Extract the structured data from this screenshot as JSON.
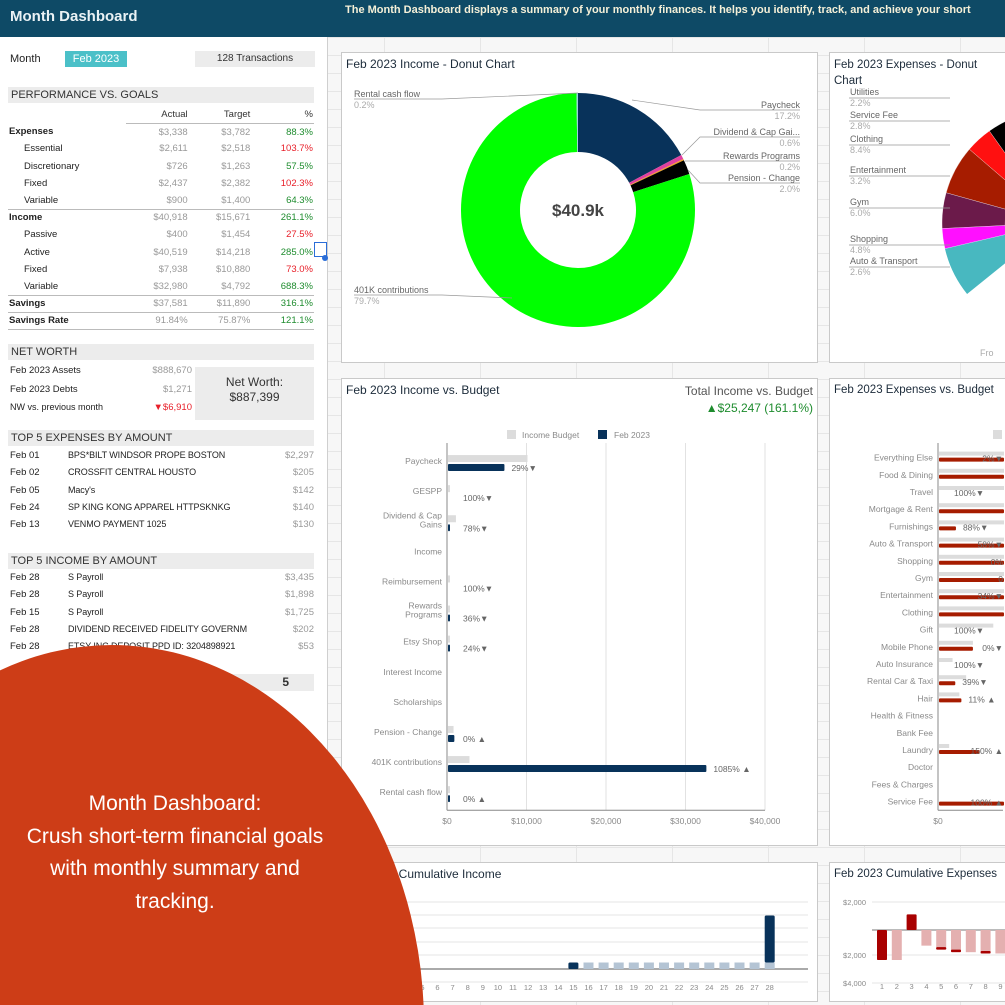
{
  "header": {
    "title": "Month Dashboard",
    "description": "The Month Dashboard displays a summary of your monthly finances. It helps you identify, track, and achieve your short"
  },
  "left": {
    "month_label": "Month",
    "month_value": "Feb 2023",
    "transactions": "128 Transactions",
    "performance": {
      "header": "PERFORMANCE VS. GOALS",
      "columns": [
        "Actual",
        "Target",
        "%"
      ],
      "rows": [
        {
          "label": "Expenses",
          "actual": "$3,338",
          "target": "$3,782",
          "pct": "88.3%",
          "status": "good",
          "level": "top"
        },
        {
          "label": "Essential",
          "actual": "$2,611",
          "target": "$2,518",
          "pct": "103.7%",
          "status": "bad",
          "level": "sub"
        },
        {
          "label": "Discretionary",
          "actual": "$726",
          "target": "$1,263",
          "pct": "57.5%",
          "status": "good",
          "level": "sub"
        },
        {
          "label": "Fixed",
          "actual": "$2,437",
          "target": "$2,382",
          "pct": "102.3%",
          "status": "bad",
          "level": "sub"
        },
        {
          "label": "Variable",
          "actual": "$900",
          "target": "$1,400",
          "pct": "64.3%",
          "status": "good",
          "level": "sub"
        },
        {
          "label": "Income",
          "actual": "$40,918",
          "target": "$15,671",
          "pct": "261.1%",
          "status": "good",
          "level": "top"
        },
        {
          "label": "Passive",
          "actual": "$400",
          "target": "$1,454",
          "pct": "27.5%",
          "status": "bad",
          "level": "sub"
        },
        {
          "label": "Active",
          "actual": "$40,519",
          "target": "$14,218",
          "pct": "285.0%",
          "status": "good",
          "level": "sub"
        },
        {
          "label": "Fixed",
          "actual": "$7,938",
          "target": "$10,880",
          "pct": "73.0%",
          "status": "bad",
          "level": "sub"
        },
        {
          "label": "Variable",
          "actual": "$32,980",
          "target": "$4,792",
          "pct": "688.3%",
          "status": "good",
          "level": "sub"
        },
        {
          "label": "Savings",
          "actual": "$37,581",
          "target": "$11,890",
          "pct": "316.1%",
          "status": "good",
          "level": "top"
        },
        {
          "label": "Savings Rate",
          "actual": "91.84%",
          "target": "75.87%",
          "pct": "121.1%",
          "status": "good",
          "level": "top"
        }
      ]
    },
    "net_worth": {
      "header": "NET WORTH",
      "assets_label": "Feb 2023 Assets",
      "assets": "$888,670",
      "debts_label": "Feb 2023 Debts",
      "debts": "$1,271",
      "change_label": "NW vs. previous month",
      "change": "▼$6,910",
      "total_label": "Net Worth:",
      "total": "$887,399"
    },
    "top_expenses": {
      "header": "TOP 5 EXPENSES BY AMOUNT",
      "rows": [
        {
          "date": "Feb 01",
          "name": "BPS*BILT WINDSOR PROPE   BOSTON",
          "amount": "$2,297"
        },
        {
          "date": "Feb 02",
          "name": "CROSSFIT CENTRAL HOUSTO",
          "amount": "$205"
        },
        {
          "date": "Feb 05",
          "name": "Macy's",
          "amount": "$142"
        },
        {
          "date": "Feb 24",
          "name": "SP KING KONG APPAREL     HTTPSKNKG",
          "amount": "$140"
        },
        {
          "date": "Feb 13",
          "name": "VENMO          PAYMENT    1025",
          "amount": "$130"
        }
      ]
    },
    "top_income": {
      "header": "TOP 5 INCOME BY AMOUNT",
      "rows": [
        {
          "date": "Feb 28",
          "name": "S Payroll",
          "amount": "$3,435"
        },
        {
          "date": "Feb 28",
          "name": "S Payroll",
          "amount": "$1,898"
        },
        {
          "date": "Feb 15",
          "name": "S Payroll",
          "amount": "$1,725"
        },
        {
          "date": "Feb 28",
          "name": "DIVIDEND RECEIVED FIDELITY GOVERNM",
          "amount": "$202"
        },
        {
          "date": "Feb 28",
          "name": "ETSY INC DEPOSIT PPD ID: 3204898921",
          "amount": "$53"
        }
      ]
    },
    "count_value": "5"
  },
  "overlay": {
    "heading": "Month Dashboard:",
    "body": "Crush short-term financial goals with monthly summary and tracking."
  },
  "chart_data": [
    {
      "id": "income-donut",
      "type": "pie",
      "title": "Feb 2023 Income - Donut Chart",
      "center_label": "$40.9k",
      "slices": [
        {
          "label": "Paycheck",
          "value": 17.2,
          "pct": "17.2%",
          "color": "#08325a"
        },
        {
          "label": "Dividend & Cap Gai...",
          "value": 0.6,
          "pct": "0.6%",
          "color": "#e040a0"
        },
        {
          "label": "Rewards Programs",
          "value": 0.2,
          "pct": "0.2%",
          "color": "#f0a020"
        },
        {
          "label": "Pension - Change",
          "value": 2.0,
          "pct": "2.0%",
          "color": "#000000"
        },
        {
          "label": "401K contributions",
          "value": 79.7,
          "pct": "79.7%",
          "color": "#00ff00"
        },
        {
          "label": "Rental cash flow",
          "value": 0.2,
          "pct": "0.2%",
          "color": "#9ad0e0"
        }
      ]
    },
    {
      "id": "expenses-donut",
      "type": "pie",
      "title": "Feb 2023 Expenses - Donut Chart",
      "footer": "Fro",
      "slices": [
        {
          "label": "Utilities",
          "value": 2.2,
          "pct": "2.2%",
          "color": "#7ad9a8"
        },
        {
          "label": "Service Fee",
          "value": 2.8,
          "pct": "2.8%",
          "color": "#a8e8c8"
        },
        {
          "label": "Clothing",
          "value": 8.4,
          "pct": "8.4%",
          "color": "#000000"
        },
        {
          "label": "Entertainment",
          "value": 3.2,
          "pct": "3.2%",
          "color": "#ff1010"
        },
        {
          "label": "Gym",
          "value": 6.0,
          "pct": "6.0%",
          "color": "#a61c00"
        },
        {
          "label": "Shopping",
          "value": 4.8,
          "pct": "4.8%",
          "color": "#6b1a4a"
        },
        {
          "label": "Auto & Transport",
          "value": 2.6,
          "pct": "2.6%",
          "color": "#ff10ff"
        }
      ]
    },
    {
      "id": "income-vs-budget",
      "type": "bar",
      "title": "Feb 2023 Income vs. Budget",
      "summary_label": "Total Income vs. Budget",
      "summary_value": "▲$25,247 (161.1%)",
      "legend": [
        "Income Budget",
        "Feb 2023"
      ],
      "colors": {
        "budget": "#dcdcdc",
        "actual": "#08325a"
      },
      "categories": [
        "Paycheck",
        "GESPP",
        "Dividend & Cap Gains",
        "Income",
        "Reimbursement",
        "Rewards Programs",
        "Etsy Shop",
        "Interest Income",
        "Scholarships",
        "Pension - Change",
        "401K contributions",
        "Rental cash flow"
      ],
      "budget": [
        10000,
        250,
        1000,
        0,
        80,
        40,
        60,
        0,
        0,
        700,
        2700,
        50
      ],
      "actual": [
        7100,
        0,
        220,
        0,
        0,
        14,
        14,
        0,
        0,
        800,
        32500,
        120
      ],
      "annotations": [
        "29%▼",
        "100%▼",
        "78%▼",
        "",
        "100%▼",
        "36%▼",
        "24%▼",
        "",
        "",
        "0% ▲",
        "1085% ▲",
        "0% ▲"
      ],
      "xticks": [
        "$0",
        "$10,000",
        "$20,000",
        "$30,000",
        "$40,000"
      ],
      "xlim": [
        0,
        40000
      ]
    },
    {
      "id": "expenses-vs-budget",
      "type": "bar",
      "title": "Feb 2023 Expenses vs. Budget",
      "colors": {
        "budget": "#dcdcdc",
        "actual": "#a61c00"
      },
      "categories": [
        "Everything Else",
        "Food & Dining",
        "Travel",
        "Mortgage & Rent",
        "Furnishings",
        "Auto & Transport",
        "Shopping",
        "Gym",
        "Entertainment",
        "Clothing",
        "Gift",
        "Mobile Phone",
        "Auto Insurance",
        "Rental Car & Taxi",
        "Hair",
        "Health & Fitness",
        "Bank Fee",
        "Laundry",
        "Doctor",
        "Fees & Charges",
        "Service Fee"
      ],
      "budget": [
        115,
        400,
        400,
        2400,
        220,
        230,
        180,
        200,
        170,
        120,
        80,
        50,
        20,
        40,
        30,
        0,
        0,
        15,
        0,
        0,
        0
      ],
      "actual": [
        113,
        400,
        0,
        2300,
        25,
        97,
        180,
        210,
        112,
        260,
        0,
        50,
        0,
        24,
        33,
        0,
        0,
        60,
        0,
        0,
        100
      ],
      "annotations": [
        "2%▼",
        "",
        "100%▼",
        "",
        "88%▼",
        "58%▼",
        "0% ",
        "0",
        "34%▼",
        "",
        "100%▼",
        "0%▼",
        "100%▼",
        "39%▼",
        "11% ▲",
        "",
        "",
        "150% ▲",
        "",
        "",
        "100% ▲"
      ],
      "xticks": [
        "$0",
        "$25"
      ],
      "xlim": [
        0,
        280
      ]
    },
    {
      "id": "cumulative-income",
      "type": "bar",
      "title": "Feb 2023 Cumulative Income",
      "visible_title": "23 Cumulative Income",
      "categories": [
        "1",
        "2",
        "3",
        "4",
        "5",
        "6",
        "7",
        "8",
        "9",
        "10",
        "11",
        "12",
        "13",
        "14",
        "15",
        "16",
        "17",
        "18",
        "19",
        "20",
        "21",
        "22",
        "23",
        "24",
        "25",
        "26",
        "27",
        "28"
      ],
      "values": [
        0,
        0,
        0,
        0,
        0,
        0,
        0,
        0,
        0,
        0,
        0,
        0,
        0,
        0,
        1725,
        0,
        0,
        0,
        0,
        0,
        0,
        0,
        0,
        0,
        0,
        0,
        0,
        5333
      ],
      "base": [
        0,
        0,
        0,
        0,
        0,
        0,
        0,
        0,
        0,
        0,
        0,
        0,
        0,
        0,
        0,
        1725,
        1725,
        1725,
        1725,
        1725,
        1725,
        1725,
        1725,
        1725,
        1725,
        1725,
        1725,
        1725
      ],
      "colors": {
        "new": "#08325a",
        "carry": "#b4c4d4"
      }
    },
    {
      "id": "cumulative-expenses",
      "type": "bar",
      "title": "Feb 2023 Cumulative Expenses",
      "categories": [
        "1",
        "2",
        "3",
        "4",
        "5",
        "6",
        "7",
        "8",
        "9"
      ],
      "yticks": [
        "$2,000",
        "$2,000",
        "$4,000"
      ],
      "values": [
        -2300,
        -2300,
        1200,
        -1200,
        -1500,
        -1700,
        -1700,
        -1800,
        -1800
      ],
      "delta": [
        -2300,
        0,
        1200,
        0,
        -150,
        -200,
        0,
        -120,
        0
      ],
      "colors": {
        "new": "#a80000",
        "carry": "#e4b0b0"
      }
    }
  ]
}
